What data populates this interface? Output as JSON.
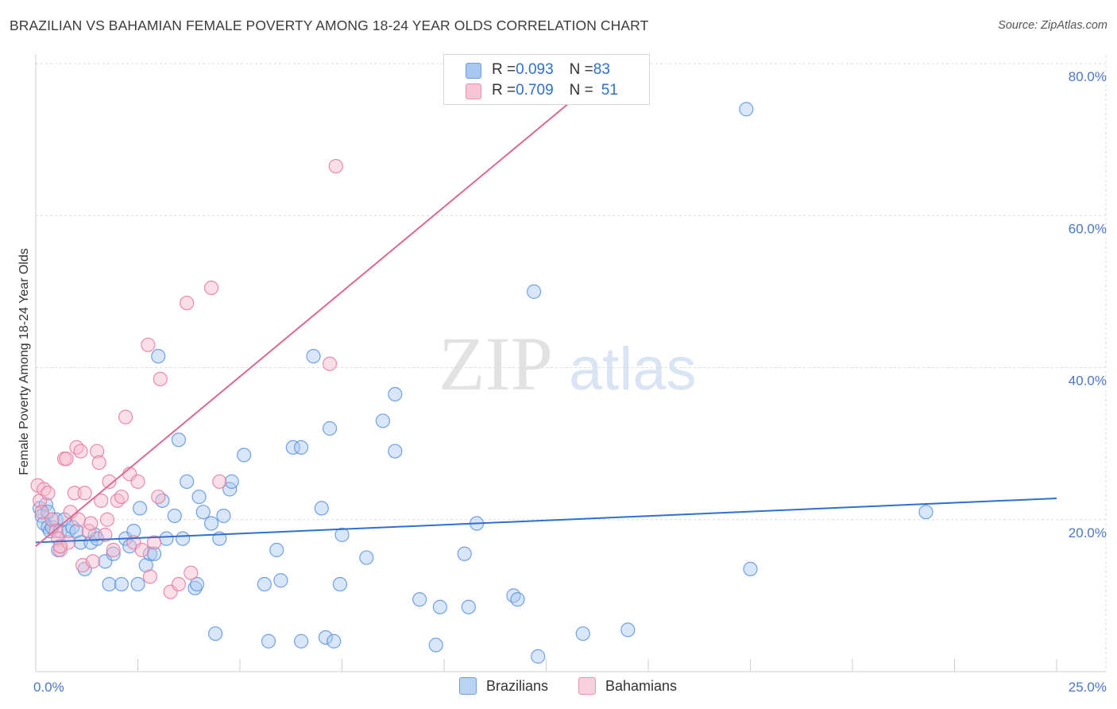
{
  "title": "BRAZILIAN VS BAHAMIAN FEMALE POVERTY AMONG 18-24 YEAR OLDS CORRELATION CHART",
  "source": "Source: ZipAtlas.com",
  "watermark": {
    "zip": "ZIP",
    "atlas": "atlas"
  },
  "legend": {
    "rows": [
      {
        "r_label": "R = ",
        "r_value": "0.093",
        "n_label": "N = ",
        "n_value": "83",
        "color": "#a9c8f0"
      },
      {
        "r_label": "R = ",
        "r_value": "0.709",
        "n_label": "N = ",
        "n_value": "51",
        "color": "#f7b9cd"
      }
    ]
  },
  "bottom_legend": {
    "brazilians": "Brazilians",
    "bahamians": "Bahamians"
  },
  "chart_data": {
    "type": "scatter",
    "ylabel": "Female Poverty Among 18-24 Year Olds",
    "xlabel": "",
    "xlim": [
      0,
      25
    ],
    "ylim": [
      0,
      80
    ],
    "x_tick_labels": [
      {
        "value": 0,
        "label": "0.0%"
      },
      {
        "value": 25,
        "label": "25.0%"
      }
    ],
    "y_tick_labels": [
      {
        "value": 20,
        "label": "20.0%"
      },
      {
        "value": 40,
        "label": "40.0%"
      },
      {
        "value": 60,
        "label": "60.0%"
      },
      {
        "value": 80,
        "label": "80.0%"
      }
    ],
    "grid": true,
    "series": [
      {
        "name": "Brazilians",
        "color": "#5b93e0",
        "fill": "#a9c8f0",
        "trendline": {
          "x": [
            0,
            25
          ],
          "y": [
            17.0,
            22.8
          ],
          "color": "#2f6fcf"
        },
        "points": [
          [
            0.1,
            21.5
          ],
          [
            0.15,
            20.5
          ],
          [
            0.2,
            19.5
          ],
          [
            0.25,
            22.0
          ],
          [
            0.3,
            19.0
          ],
          [
            0.35,
            18.5
          ],
          [
            0.4,
            19.0
          ],
          [
            0.5,
            20.0
          ],
          [
            0.55,
            16.0
          ],
          [
            0.6,
            18.5
          ],
          [
            0.7,
            20.0
          ],
          [
            0.8,
            18.5
          ],
          [
            0.9,
            19.0
          ],
          [
            1.0,
            18.5
          ],
          [
            1.1,
            17.0
          ],
          [
            1.2,
            13.5
          ],
          [
            1.35,
            17.0
          ],
          [
            1.45,
            18.0
          ],
          [
            1.5,
            17.5
          ],
          [
            1.7,
            14.5
          ],
          [
            1.8,
            11.5
          ],
          [
            1.9,
            15.5
          ],
          [
            2.1,
            11.5
          ],
          [
            2.2,
            17.5
          ],
          [
            2.3,
            16.5
          ],
          [
            2.4,
            18.5
          ],
          [
            2.5,
            11.5
          ],
          [
            2.55,
            21.5
          ],
          [
            2.7,
            14.0
          ],
          [
            2.8,
            15.5
          ],
          [
            2.9,
            15.5
          ],
          [
            3.0,
            41.5
          ],
          [
            3.1,
            22.5
          ],
          [
            3.2,
            17.5
          ],
          [
            3.4,
            20.5
          ],
          [
            3.5,
            30.5
          ],
          [
            3.6,
            17.5
          ],
          [
            3.7,
            25.0
          ],
          [
            3.9,
            11.0
          ],
          [
            3.95,
            11.5
          ],
          [
            4.0,
            23.0
          ],
          [
            4.1,
            21.0
          ],
          [
            4.3,
            19.5
          ],
          [
            4.4,
            5.0
          ],
          [
            4.5,
            17.5
          ],
          [
            4.6,
            20.5
          ],
          [
            4.75,
            24.0
          ],
          [
            4.8,
            25.0
          ],
          [
            5.1,
            28.5
          ],
          [
            5.6,
            11.5
          ],
          [
            5.7,
            4.0
          ],
          [
            5.9,
            16.0
          ],
          [
            6.0,
            12.0
          ],
          [
            6.3,
            29.5
          ],
          [
            6.5,
            29.5
          ],
          [
            6.5,
            4.0
          ],
          [
            6.8,
            41.5
          ],
          [
            7.0,
            21.5
          ],
          [
            7.1,
            4.5
          ],
          [
            7.2,
            32.0
          ],
          [
            7.3,
            4.0
          ],
          [
            7.45,
            11.5
          ],
          [
            7.5,
            18.0
          ],
          [
            8.1,
            15.0
          ],
          [
            8.5,
            33.0
          ],
          [
            8.8,
            36.5
          ],
          [
            8.8,
            29.0
          ],
          [
            9.4,
            9.5
          ],
          [
            9.8,
            3.5
          ],
          [
            9.9,
            8.5
          ],
          [
            10.5,
            15.5
          ],
          [
            10.6,
            8.5
          ],
          [
            10.8,
            19.5
          ],
          [
            11.7,
            10.0
          ],
          [
            11.8,
            9.5
          ],
          [
            12.2,
            50.0
          ],
          [
            12.3,
            2.0
          ],
          [
            13.4,
            5.0
          ],
          [
            14.5,
            5.5
          ],
          [
            17.4,
            74.0
          ],
          [
            17.5,
            13.5
          ],
          [
            21.8,
            21.0
          ],
          [
            0.3,
            21.0
          ]
        ]
      },
      {
        "name": "Bahamians",
        "color": "#e8799c",
        "fill": "#f7b9cd",
        "trendline": {
          "x": [
            0,
            14.0
          ],
          "y": [
            16.5,
            79.0
          ],
          "color": "#e0688e"
        },
        "points": [
          [
            0.05,
            24.5
          ],
          [
            0.1,
            22.5
          ],
          [
            0.15,
            21.0
          ],
          [
            0.2,
            24.0
          ],
          [
            0.3,
            23.5
          ],
          [
            0.4,
            20.0
          ],
          [
            0.5,
            18.5
          ],
          [
            0.55,
            17.5
          ],
          [
            0.6,
            16.0
          ],
          [
            0.7,
            28.0
          ],
          [
            0.75,
            28.0
          ],
          [
            0.8,
            17.0
          ],
          [
            0.85,
            21.0
          ],
          [
            0.95,
            23.5
          ],
          [
            1.0,
            29.5
          ],
          [
            1.05,
            20.0
          ],
          [
            1.1,
            29.0
          ],
          [
            1.15,
            14.0
          ],
          [
            1.2,
            23.5
          ],
          [
            1.3,
            18.5
          ],
          [
            1.35,
            19.5
          ],
          [
            1.4,
            14.5
          ],
          [
            1.5,
            29.0
          ],
          [
            1.55,
            27.5
          ],
          [
            1.6,
            22.5
          ],
          [
            1.7,
            18.0
          ],
          [
            1.75,
            20.0
          ],
          [
            1.8,
            25.0
          ],
          [
            1.9,
            16.0
          ],
          [
            2.0,
            22.5
          ],
          [
            2.1,
            23.0
          ],
          [
            2.2,
            33.5
          ],
          [
            2.3,
            26.0
          ],
          [
            2.4,
            17.0
          ],
          [
            2.5,
            25.0
          ],
          [
            2.6,
            16.0
          ],
          [
            2.75,
            43.0
          ],
          [
            2.8,
            12.5
          ],
          [
            2.9,
            17.0
          ],
          [
            3.0,
            23.0
          ],
          [
            3.05,
            38.5
          ],
          [
            3.3,
            10.5
          ],
          [
            3.5,
            11.5
          ],
          [
            3.7,
            48.5
          ],
          [
            3.8,
            13.0
          ],
          [
            4.3,
            50.5
          ],
          [
            4.5,
            25.0
          ],
          [
            7.2,
            40.5
          ],
          [
            7.35,
            66.5
          ],
          [
            10.8,
            76.0
          ],
          [
            0.6,
            16.5
          ]
        ]
      }
    ]
  }
}
